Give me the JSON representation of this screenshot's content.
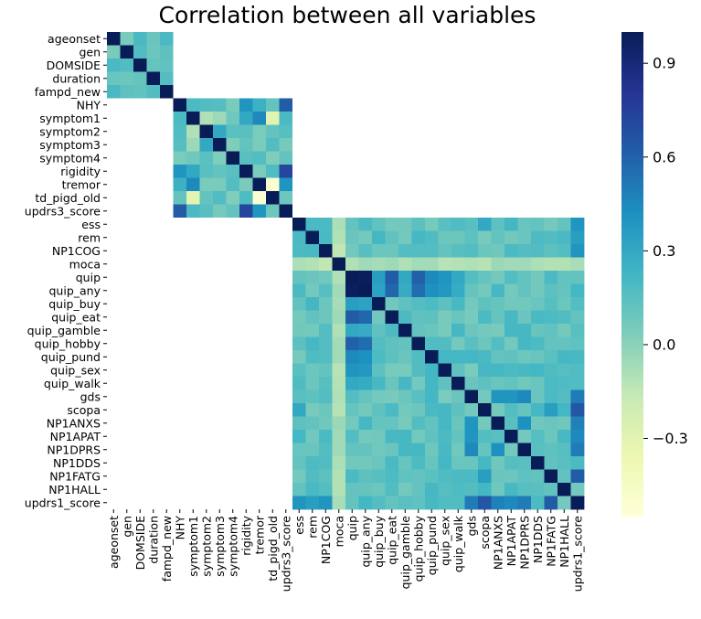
{
  "chart_data": {
    "type": "heatmap",
    "title": "Correlation between all variables",
    "variables": [
      "ageonset",
      "gen",
      "DOMSIDE",
      "duration",
      "fampd_new",
      "NHY",
      "symptom1",
      "symptom2",
      "symptom3",
      "symptom4",
      "rigidity",
      "tremor",
      "td_pigd_old",
      "updrs3_score",
      "ess",
      "rem",
      "NP1COG",
      "moca",
      "quip",
      "quip_any",
      "quip_buy",
      "quip_eat",
      "quip_gamble",
      "quip_hobby",
      "quip_pund",
      "quip_sex",
      "quip_walk",
      "gds",
      "scopa",
      "NP1ANXS",
      "NP1APAT",
      "NP1DPRS",
      "NP1DDS",
      "NP1FATG",
      "NP1HALL",
      "updrs1_score"
    ],
    "group_sizes": [
      5,
      9,
      22
    ],
    "missing_value_between_groups": true,
    "colorbar": {
      "min": -0.55,
      "max": 1.0,
      "ticks": [
        -0.3,
        0.0,
        0.3,
        0.6,
        0.9
      ],
      "tick_labels": [
        "−0.3",
        "0.0",
        "0.3",
        "0.6",
        "0.9"
      ]
    },
    "colormap": "YlGnBu",
    "colormap_stops": [
      "#ffffd9",
      "#edf8b1",
      "#c7e9b4",
      "#7fcdbb",
      "#41b6c4",
      "#1d91c0",
      "#225ea8",
      "#253494",
      "#081d58"
    ],
    "missing_color": "#ffffff",
    "strong_correlations": [
      {
        "a": "quip",
        "b": "quip_any",
        "value": 0.98
      },
      {
        "a": "quip",
        "b": "quip_eat",
        "value": 0.62
      },
      {
        "a": "quip_any",
        "b": "quip_eat",
        "value": 0.58
      },
      {
        "a": "quip",
        "b": "quip_hobby",
        "value": 0.6
      },
      {
        "a": "quip_any",
        "b": "quip_hobby",
        "value": 0.55
      },
      {
        "a": "quip",
        "b": "quip_pund",
        "value": 0.45
      },
      {
        "a": "quip_any",
        "b": "quip_pund",
        "value": 0.42
      },
      {
        "a": "quip",
        "b": "quip_sex",
        "value": 0.4
      },
      {
        "a": "quip_any",
        "b": "quip_sex",
        "value": 0.38
      },
      {
        "a": "quip",
        "b": "quip_buy",
        "value": 0.35
      },
      {
        "a": "quip_any",
        "b": "quip_buy",
        "value": 0.33
      },
      {
        "a": "quip",
        "b": "quip_gamble",
        "value": 0.3
      },
      {
        "a": "quip_any",
        "b": "quip_gamble",
        "value": 0.28
      },
      {
        "a": "quip",
        "b": "quip_walk",
        "value": 0.3
      },
      {
        "a": "quip_any",
        "b": "quip_walk",
        "value": 0.28
      },
      {
        "a": "updrs1_score",
        "b": "scopa",
        "value": 0.65
      },
      {
        "a": "updrs1_score",
        "b": "NP1FATG",
        "value": 0.62
      },
      {
        "a": "updrs1_score",
        "b": "gds",
        "value": 0.5
      },
      {
        "a": "updrs1_score",
        "b": "NP1DPRS",
        "value": 0.5
      },
      {
        "a": "updrs1_score",
        "b": "NP1ANXS",
        "value": 0.48
      },
      {
        "a": "updrs1_score",
        "b": "NP1APAT",
        "value": 0.45
      },
      {
        "a": "updrs1_score",
        "b": "ess",
        "value": 0.4
      },
      {
        "a": "updrs1_score",
        "b": "rem",
        "value": 0.35
      },
      {
        "a": "updrs1_score",
        "b": "NP1COG",
        "value": 0.4
      },
      {
        "a": "gds",
        "b": "NP1DPRS",
        "value": 0.45
      },
      {
        "a": "gds",
        "b": "NP1ANXS",
        "value": 0.4
      },
      {
        "a": "gds",
        "b": "NP1APAT",
        "value": 0.4
      },
      {
        "a": "NP1ANXS",
        "b": "NP1DPRS",
        "value": 0.42
      },
      {
        "a": "scopa",
        "b": "NP1FATG",
        "value": 0.35
      },
      {
        "a": "ess",
        "b": "scopa",
        "value": 0.3
      },
      {
        "a": "moca",
        "b": "NP1COG",
        "value": -0.15
      },
      {
        "a": "updrs3_score",
        "b": "NHY",
        "value": 0.62
      },
      {
        "a": "updrs3_score",
        "b": "rigidity",
        "value": 0.72
      },
      {
        "a": "updrs3_score",
        "b": "tremor",
        "value": 0.4
      },
      {
        "a": "rigidity",
        "b": "NHY",
        "value": 0.4
      },
      {
        "a": "tremor",
        "b": "symptom1",
        "value": 0.45
      },
      {
        "a": "td_pigd_old",
        "b": "tremor",
        "value": -0.5
      },
      {
        "a": "td_pigd_old",
        "b": "symptom1",
        "value": -0.3
      },
      {
        "a": "symptom1",
        "b": "symptom2",
        "value": -0.1
      },
      {
        "a": "symptom1",
        "b": "symptom3",
        "value": -0.05
      },
      {
        "a": "symptom2",
        "b": "symptom3",
        "value": 0.3
      },
      {
        "a": "symptom1",
        "b": "rigidity",
        "value": 0.3
      },
      {
        "a": "symptom2",
        "b": "tremor",
        "value": 0.05
      },
      {
        "a": "symptom3",
        "b": "tremor",
        "value": 0.05
      },
      {
        "a": "ageonset",
        "b": "duration",
        "value": 0.1
      },
      {
        "a": "ageonset",
        "b": "gen",
        "value": 0.05
      },
      {
        "a": "NHY",
        "b": "tremor",
        "value": 0.25
      }
    ]
  }
}
